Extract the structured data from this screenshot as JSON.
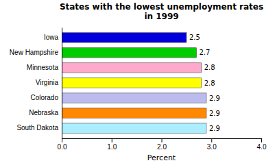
{
  "chart_data": {
    "type": "bar",
    "orientation": "horizontal",
    "title": "States with the lowest unemployment rates\nin 1999",
    "categories": [
      "Iowa",
      "New Hampshire",
      "Minnesota",
      "Virginia",
      "Colorado",
      "Nebraska",
      "South Dakota"
    ],
    "values": [
      2.5,
      2.7,
      2.8,
      2.8,
      2.9,
      2.9,
      2.9
    ],
    "colors": [
      "#0000dd",
      "#00cc00",
      "#ffaacc",
      "#ffff00",
      "#bbbbee",
      "#ff8800",
      "#aaeeff"
    ],
    "xlabel": "Percent",
    "xlim": [
      0,
      4.0
    ],
    "xticks": [
      {
        "value": 0.0,
        "label": "0.0"
      },
      {
        "value": 1.0,
        "label": "1.0"
      },
      {
        "value": 2.0,
        "label": "2.0"
      },
      {
        "value": 3.0,
        "label": "3.0"
      },
      {
        "value": 4.0,
        "label": "4.0"
      }
    ],
    "data_labels": true,
    "grid": false
  }
}
